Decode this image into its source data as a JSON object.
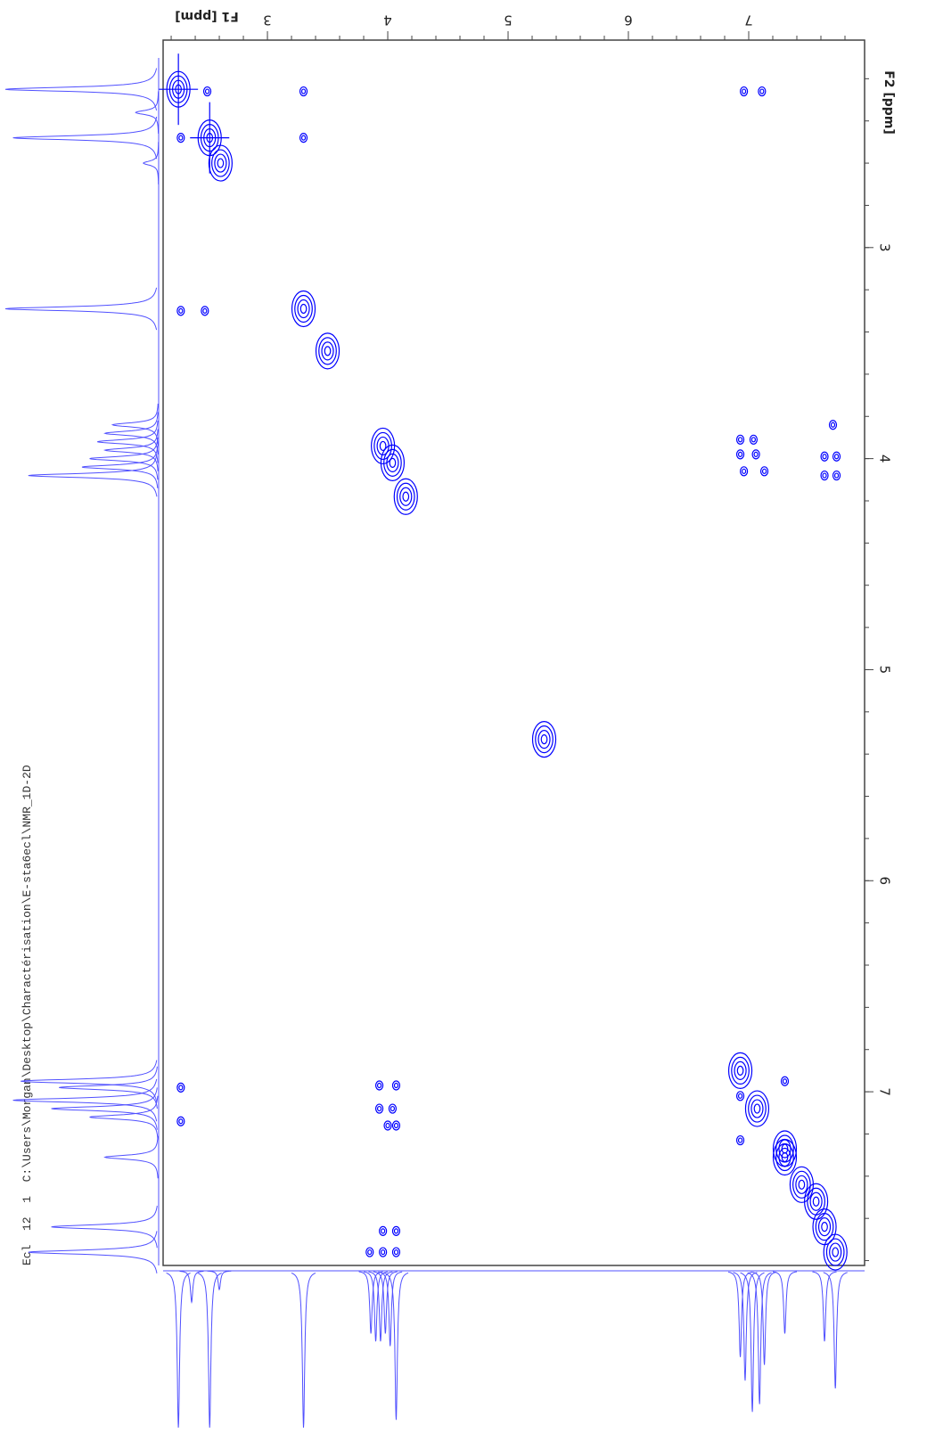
{
  "chart_data": {
    "type": "nmr2d",
    "sample_label": "Ecl  12  1  C:\\Users\\Morgan\\Desktop\\Charactérisation\\E-sta6ecl\\NMR_1D-2D",
    "xlabel": "F1 [ppm]",
    "ylabel": "F2 [ppm]",
    "xlim": [
      2.133,
      7.963
    ],
    "ylim": [
      2.017,
      7.823
    ],
    "xticks": [
      3,
      4,
      5,
      6,
      7
    ],
    "yticks": [
      3,
      4,
      5,
      6,
      7
    ],
    "color": "#0000ff",
    "projection_color": "#5050ff",
    "peaks": {
      "f1": [
        2.26,
        2.52,
        3.3,
        3.96,
        4.04,
        5.3,
        6.93,
        7.07,
        7.3,
        7.3,
        7.63,
        7.72,
        7.44,
        7.56,
        2.5,
        3.3,
        6.96,
        7.11,
        2.28,
        3.3,
        2.28,
        2.48,
        2.61,
        3.5,
        4.15,
        6.93,
        7.04,
        6.93,
        7.06,
        6.96,
        7.13,
        7.7,
        7.63,
        7.73,
        7.63,
        7.73,
        2.28,
        2.28,
        3.93,
        4.07,
        3.93,
        4.04,
        4.0,
        4.07,
        3.96,
        4.07,
        3.85,
        3.96,
        4.07,
        6.93,
        7.3,
        6.93
      ],
      "f2": [
        2.25,
        2.48,
        3.29,
        3.94,
        4.02,
        5.33,
        7.02,
        7.08,
        7.31,
        6.95,
        7.64,
        7.76,
        7.44,
        7.52,
        2.26,
        2.26,
        2.26,
        2.26,
        2.48,
        2.48,
        3.3,
        3.3,
        2.6,
        3.49,
        4.18,
        3.91,
        3.91,
        3.98,
        3.98,
        4.06,
        4.06,
        3.84,
        3.99,
        3.99,
        4.08,
        4.08,
        6.98,
        7.14,
        6.97,
        6.97,
        7.08,
        7.08,
        7.16,
        7.16,
        7.66,
        7.66,
        7.76,
        7.76,
        7.76,
        7.23,
        7.27,
        6.9
      ]
    },
    "left_projection": {
      "ppm": [
        2.25,
        2.36,
        2.48,
        2.6,
        3.29,
        3.84,
        3.88,
        3.92,
        3.96,
        4.0,
        4.04,
        4.08,
        6.95,
        6.98,
        7.04,
        7.08,
        7.12,
        7.31,
        7.64,
        7.76
      ],
      "height": [
        100,
        15,
        95,
        10,
        100,
        30,
        35,
        40,
        35,
        45,
        50,
        85,
        90,
        65,
        95,
        70,
        45,
        35,
        70,
        85
      ]
    },
    "bottom_projection": {
      "ppm": [
        2.26,
        2.37,
        2.52,
        2.6,
        3.3,
        3.86,
        3.9,
        3.94,
        3.98,
        4.02,
        4.07,
        6.93,
        6.97,
        7.03,
        7.09,
        7.13,
        7.3,
        7.63,
        7.72
      ],
      "height": [
        100,
        20,
        100,
        12,
        100,
        40,
        45,
        45,
        40,
        48,
        95,
        55,
        70,
        90,
        85,
        60,
        40,
        45,
        75
      ]
    }
  }
}
